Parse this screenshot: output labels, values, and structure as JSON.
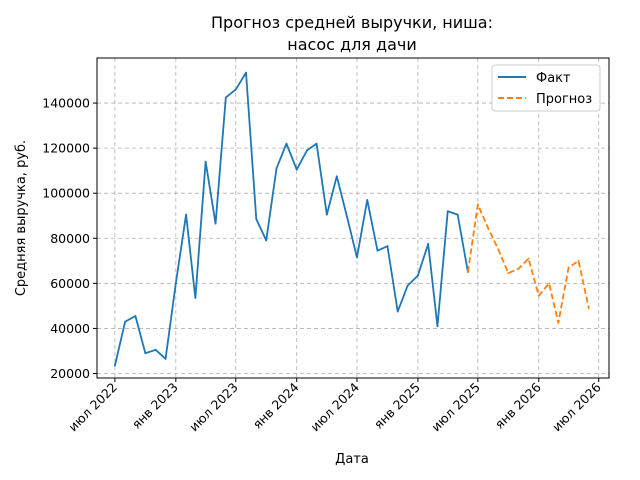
{
  "chart_data": {
    "type": "line",
    "title_line1": "Прогноз средней выручки, ниша:",
    "title_line2": "насос для дачи",
    "xlabel": "Дата",
    "ylabel": "Средняя выручка, руб.",
    "ylim": [
      18000,
      160000
    ],
    "xlim": [
      "2022-05-08",
      "2026-08-01"
    ],
    "grid": true,
    "legend_position": "top-right",
    "x_ticks": [
      {
        "date": "2022-07-01",
        "label": "июл 2022"
      },
      {
        "date": "2023-01-01",
        "label": "янв 2023"
      },
      {
        "date": "2023-07-01",
        "label": "июл 2023"
      },
      {
        "date": "2024-01-01",
        "label": "янв 2024"
      },
      {
        "date": "2024-07-01",
        "label": "июл 2024"
      },
      {
        "date": "2025-01-01",
        "label": "янв 2025"
      },
      {
        "date": "2025-07-01",
        "label": "июл 2025"
      },
      {
        "date": "2026-01-01",
        "label": "янв 2026"
      },
      {
        "date": "2026-07-01",
        "label": "июл 2026"
      }
    ],
    "y_ticks": [
      {
        "value": 20000,
        "label": "20000"
      },
      {
        "value": 40000,
        "label": "40000"
      },
      {
        "value": 60000,
        "label": "60000"
      },
      {
        "value": 80000,
        "label": "80000"
      },
      {
        "value": 100000,
        "label": "100000"
      },
      {
        "value": 120000,
        "label": "120000"
      },
      {
        "value": 140000,
        "label": "140000"
      }
    ],
    "series": [
      {
        "name": "Факт",
        "color": "#1f77b4",
        "line_style": "solid",
        "points": [
          {
            "x": "2022-07-01",
            "y": 23500
          },
          {
            "x": "2022-08-01",
            "y": 43000
          },
          {
            "x": "2022-09-01",
            "y": 45500
          },
          {
            "x": "2022-10-01",
            "y": 29000
          },
          {
            "x": "2022-11-01",
            "y": 30500
          },
          {
            "x": "2022-12-01",
            "y": 26500
          },
          {
            "x": "2023-01-01",
            "y": 60000
          },
          {
            "x": "2023-02-01",
            "y": 90500
          },
          {
            "x": "2023-03-01",
            "y": 53500
          },
          {
            "x": "2023-04-01",
            "y": 114000
          },
          {
            "x": "2023-05-01",
            "y": 86500
          },
          {
            "x": "2023-06-01",
            "y": 142500
          },
          {
            "x": "2023-07-01",
            "y": 146000
          },
          {
            "x": "2023-08-01",
            "y": 153500
          },
          {
            "x": "2023-09-01",
            "y": 88500
          },
          {
            "x": "2023-10-01",
            "y": 79000
          },
          {
            "x": "2023-11-01",
            "y": 111000
          },
          {
            "x": "2023-12-01",
            "y": 122000
          },
          {
            "x": "2024-01-01",
            "y": 110500
          },
          {
            "x": "2024-02-01",
            "y": 119000
          },
          {
            "x": "2024-03-01",
            "y": 122000
          },
          {
            "x": "2024-04-01",
            "y": 90500
          },
          {
            "x": "2024-05-01",
            "y": 107500
          },
          {
            "x": "2024-06-01",
            "y": 89500
          },
          {
            "x": "2024-07-01",
            "y": 71500
          },
          {
            "x": "2024-08-01",
            "y": 97000
          },
          {
            "x": "2024-09-01",
            "y": 74500
          },
          {
            "x": "2024-10-01",
            "y": 76500
          },
          {
            "x": "2024-11-01",
            "y": 47500
          },
          {
            "x": "2024-12-01",
            "y": 59000
          },
          {
            "x": "2025-01-01",
            "y": 63500
          },
          {
            "x": "2025-02-01",
            "y": 77500
          },
          {
            "x": "2025-03-01",
            "y": 41000
          },
          {
            "x": "2025-04-01",
            "y": 92000
          },
          {
            "x": "2025-05-01",
            "y": 90500
          },
          {
            "x": "2025-06-01",
            "y": 65000
          }
        ]
      },
      {
        "name": "Прогноз",
        "color": "#ff7f0e",
        "line_style": "dashed",
        "points": [
          {
            "x": "2025-06-01",
            "y": 65000
          },
          {
            "x": "2025-07-01",
            "y": 95000
          },
          {
            "x": "2025-08-01",
            "y": 84500
          },
          {
            "x": "2025-09-01",
            "y": 75000
          },
          {
            "x": "2025-10-01",
            "y": 64500
          },
          {
            "x": "2025-11-01",
            "y": 66500
          },
          {
            "x": "2025-12-01",
            "y": 71000
          },
          {
            "x": "2026-01-01",
            "y": 54500
          },
          {
            "x": "2026-02-01",
            "y": 60000
          },
          {
            "x": "2026-03-01",
            "y": 42500
          },
          {
            "x": "2026-04-01",
            "y": 67000
          },
          {
            "x": "2026-05-01",
            "y": 70000
          },
          {
            "x": "2026-06-01",
            "y": 49000
          }
        ]
      }
    ]
  }
}
